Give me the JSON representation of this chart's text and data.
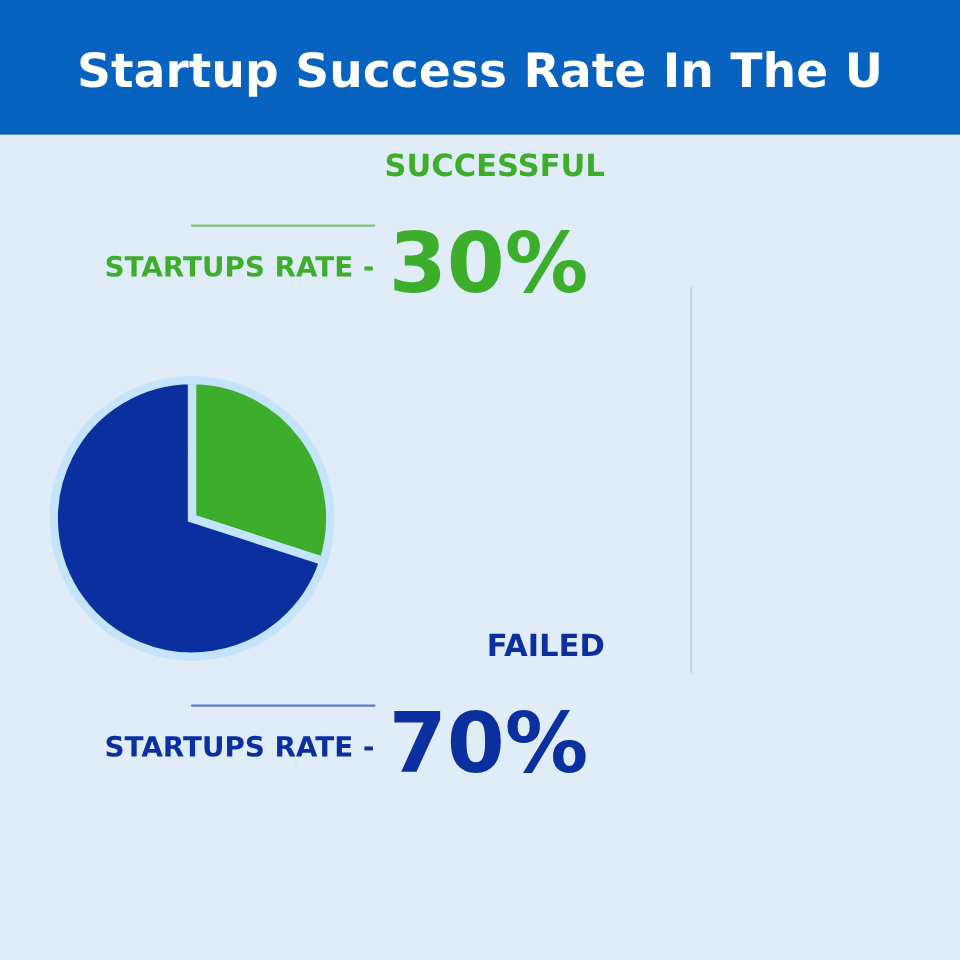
{
  "chart_data": {
    "type": "pie",
    "title": "Startup Success Rate In The U",
    "categories": [
      "SUCCESSFUL STARTUPS RATE -",
      "FAILED STARTUPS RATE -"
    ],
    "values": [
      30,
      70
    ],
    "value_labels": [
      "30%",
      "70%"
    ],
    "colors": [
      "#3dae2b",
      "#0a2f9e"
    ]
  }
}
